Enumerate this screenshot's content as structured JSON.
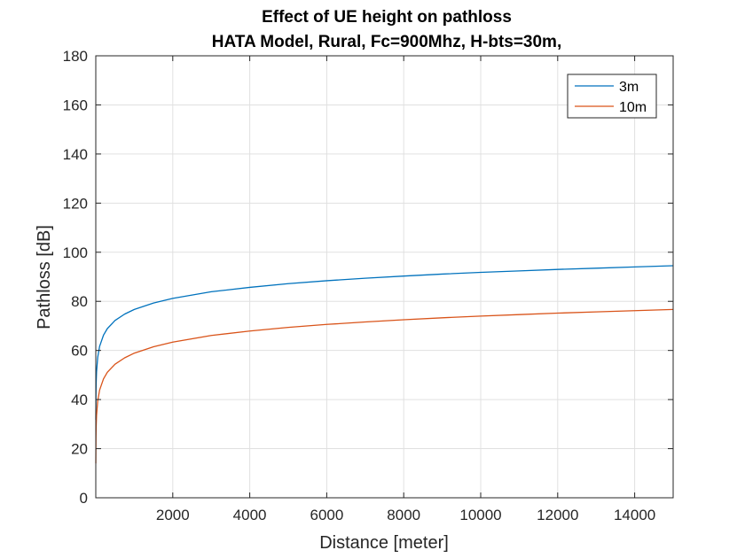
{
  "chart_data": {
    "type": "line",
    "title": "Effect of UE height on pathloss",
    "subtitle": "HATA Model, Rural, Fc=900Mhz, H-bts=30m,",
    "xlabel": "Distance [meter]",
    "ylabel": "Pathloss [dB]",
    "xlim": [
      0,
      15000
    ],
    "ylim": [
      0,
      180
    ],
    "xticks": [
      2000,
      4000,
      6000,
      8000,
      10000,
      12000,
      14000
    ],
    "yticks": [
      0,
      20,
      40,
      60,
      80,
      100,
      120,
      140,
      160,
      180
    ],
    "grid": true,
    "legend_position": "top-right",
    "series": [
      {
        "name": "3m",
        "color": "#0072BD",
        "x": [
          1,
          5,
          10,
          20,
          50,
          100,
          200,
          300,
          500,
          750,
          1000,
          1500,
          2000,
          3000,
          4000,
          5000,
          6000,
          7000,
          8000,
          9000,
          10000,
          11000,
          12000,
          13000,
          14000,
          15000
        ],
        "y": [
          31.8,
          42.3,
          46.8,
          51.3,
          57.2,
          61.7,
          66.2,
          68.9,
          72.2,
          74.8,
          76.7,
          79.3,
          81.2,
          83.9,
          85.7,
          87.2,
          88.4,
          89.4,
          90.3,
          91.1,
          91.8,
          92.4,
          93.0,
          93.5,
          94.0,
          94.5
        ],
        "y_note": "placeholder"
      },
      {
        "name": "10m",
        "color": "#D95319",
        "x": [
          1,
          5,
          10,
          20,
          50,
          100,
          200,
          300,
          500,
          750,
          1000,
          1500,
          2000,
          3000,
          4000,
          5000,
          6000,
          7000,
          8000,
          9000,
          10000,
          11000,
          12000,
          13000,
          14000,
          15000
        ],
        "y": [
          14.0,
          24.5,
          29.0,
          33.5,
          39.4,
          43.9,
          48.4,
          51.1,
          54.4,
          57.0,
          58.9,
          61.5,
          63.4,
          66.1,
          67.9,
          69.4,
          70.6,
          71.6,
          72.5,
          73.3,
          74.0,
          74.6,
          75.2,
          75.7,
          76.2,
          76.7
        ]
      }
    ]
  }
}
